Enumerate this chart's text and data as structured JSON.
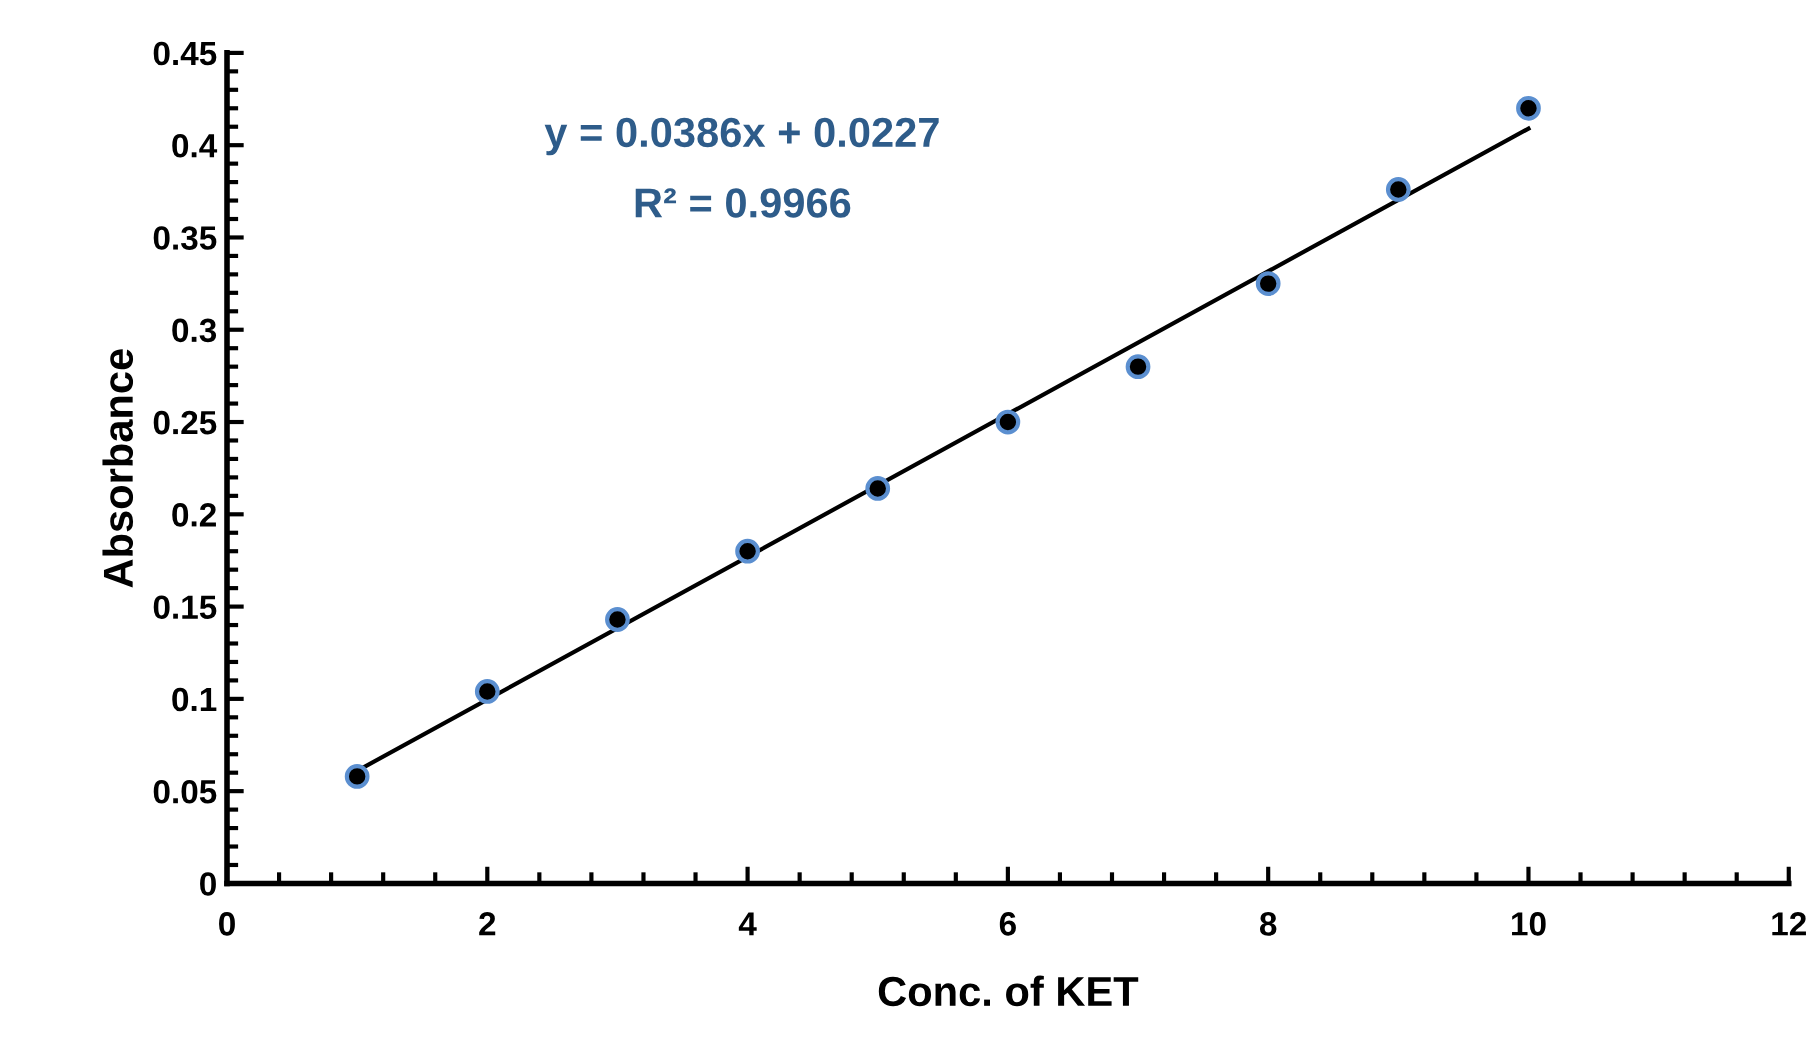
{
  "chart_data": {
    "type": "scatter",
    "xlabel": "Conc. of KET",
    "ylabel": "Absorbance",
    "annotations": [
      "y = 0.0386x + 0.0227",
      "R² = 0.9966"
    ],
    "series": [
      {
        "marker": "circle",
        "color": "#000000",
        "x": [
          1,
          2,
          3,
          4,
          5,
          6,
          7,
          8,
          9,
          10
        ],
        "values": [
          0.058,
          0.104,
          0.143,
          0.18,
          0.214,
          0.25,
          0.28,
          0.325,
          0.376,
          0.42
        ]
      },
      {
        "type": "line",
        "color": "#000000",
        "x": [
          1,
          10
        ],
        "values": [
          0.061,
          0.409
        ]
      }
    ],
    "xlim": [
      0,
      12
    ],
    "ylim": [
      0,
      0.45
    ],
    "xticks": [
      0,
      2,
      4,
      6,
      8,
      10,
      12
    ],
    "yticks": [
      0,
      0.05,
      0.1,
      0.15,
      0.2,
      0.25,
      0.3,
      0.35,
      0.4,
      0.45
    ],
    "grid": false,
    "legend": false
  }
}
